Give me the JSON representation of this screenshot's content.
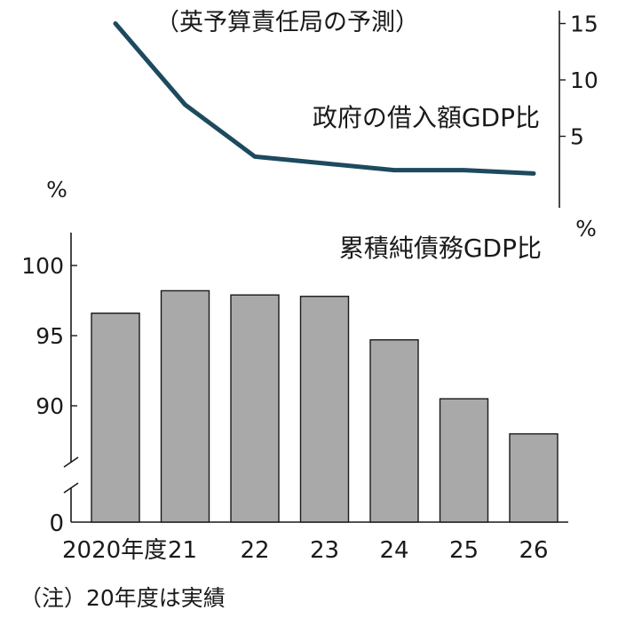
{
  "header": {
    "source_note": "（英予算責任局の予測）"
  },
  "footnote": "（注）20年度は実績",
  "chart_data": [
    {
      "type": "line",
      "title": "政府の借入額GDP比",
      "unit": "%",
      "categories": [
        "2020年度",
        "21",
        "22",
        "23",
        "24",
        "25",
        "26"
      ],
      "values": [
        15.0,
        7.8,
        3.2,
        2.6,
        2.0,
        2.0,
        1.7
      ],
      "ylim": [
        0,
        16
      ],
      "yticks": [
        5,
        10,
        15
      ],
      "y_axis_side": "right",
      "color": "#1d4a5e"
    },
    {
      "type": "bar",
      "title": "累積純債務GDP比",
      "unit": "%",
      "categories": [
        "2020年度",
        "21",
        "22",
        "23",
        "24",
        "25",
        "26"
      ],
      "values": [
        96.6,
        98.2,
        97.9,
        97.8,
        94.7,
        90.5,
        88.0
      ],
      "ylim": [
        83,
        102.5
      ],
      "yticks": [
        90,
        95,
        100
      ],
      "y_axis_break": true,
      "y_zero_label": "0",
      "y_axis_side": "left",
      "bar_color": "#a9a9a9"
    }
  ]
}
